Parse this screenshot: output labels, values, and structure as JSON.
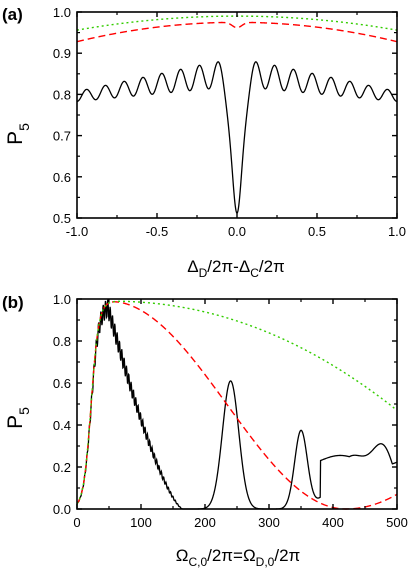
{
  "chart_data": [
    {
      "type": "line",
      "panel_label": "(a)",
      "ylabel": {
        "main": "P",
        "sub": "5"
      },
      "xlabel": {
        "p1": "Δ",
        "s1": "D",
        "p2": "/2π-Δ",
        "s2": "C",
        "p3": "/2π"
      },
      "xlim": [
        -1.0,
        1.0
      ],
      "ylim": [
        0.5,
        1.0
      ],
      "xticks": [
        "-1.0",
        "-0.5",
        "0.0",
        "0.5",
        "1.0"
      ],
      "yticks": [
        "0.5",
        "0.6",
        "0.7",
        "0.8",
        "0.9",
        "1.0"
      ],
      "reference_line_y": 1.0,
      "series": [
        {
          "style": "solid",
          "color": "#000000",
          "model": "oscillating_dip",
          "params": {
            "base_edge": 0.795,
            "base_center": 0.855,
            "osc_amp": 0.035,
            "osc_freq_cycles": 8.5,
            "dip_min": 0.512,
            "dip_width": 0.035
          }
        },
        {
          "style": "dashed",
          "color": "#ff0000",
          "model": "smooth_dip",
          "params": {
            "edge": 0.928,
            "center": 0.975,
            "dip_min": 0.962,
            "dip_width": 0.03
          }
        },
        {
          "style": "dotted",
          "color": "#33cc00",
          "model": "smooth",
          "params": {
            "edge": 0.956,
            "center": 0.99
          }
        }
      ]
    },
    {
      "type": "line",
      "panel_label": "(b)",
      "ylabel": {
        "main": "P",
        "sub": "5"
      },
      "xlabel": {
        "p1": "Ω",
        "s1": "C,0",
        "p2": "/2π=Ω",
        "s2": "D,0",
        "p3": "/2π"
      },
      "xlim": [
        0,
        500
      ],
      "ylim": [
        0.0,
        1.0
      ],
      "xticks": [
        "0",
        "100",
        "200",
        "300",
        "400",
        "500"
      ],
      "yticks": [
        "0.0",
        "0.2",
        "0.4",
        "0.6",
        "0.8",
        "1.0"
      ],
      "reference_line_y": 1.0,
      "series": [
        {
          "style": "solid",
          "color": "#000000",
          "model": "rabi_decay",
          "params": {
            "rise_center": 22,
            "rise_width": 6,
            "peak_at": 48,
            "zero_at": 165,
            "osc_freq": 0.55,
            "bumps": [
              [
                240,
                0.61,
                18
              ],
              [
                350,
                0.37,
                14
              ],
              [
                430,
                0.25,
                40
              ],
              [
                480,
                0.25,
                25
              ]
            ]
          }
        },
        {
          "style": "dashed",
          "color": "#ff0000",
          "model": "broad_dip",
          "params": {
            "rise_center": 22,
            "rise_width": 6,
            "peak_at": 50,
            "peak": 0.99,
            "min_at": 420,
            "min": 0.0,
            "end": 0.07
          }
        },
        {
          "style": "dotted",
          "color": "#33cc00",
          "model": "slow_decay",
          "params": {
            "rise_center": 22,
            "rise_width": 6,
            "plateau": 0.99,
            "end": 0.47
          }
        }
      ]
    }
  ]
}
